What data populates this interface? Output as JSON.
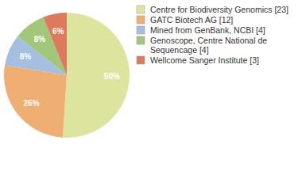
{
  "chart_data": {
    "type": "pie",
    "categories": [
      "Centre for Biodiversity Genomics [23]",
      "GATC Biotech AG [12]",
      "Mined from GenBank, NCBI [4]",
      "Genoscope, Centre National de Sequencage [4]",
      "Wellcome Sanger Institute [3]"
    ],
    "values": [
      50,
      26,
      8,
      8,
      6
    ],
    "value_labels": [
      "50%",
      "26%",
      "8%",
      "8%",
      "6%"
    ],
    "colors": [
      "#dde49e",
      "#efae72",
      "#a4bfe0",
      "#a2c67a",
      "#dd7a5e"
    ],
    "data_labels": true,
    "legend": "top-right"
  }
}
